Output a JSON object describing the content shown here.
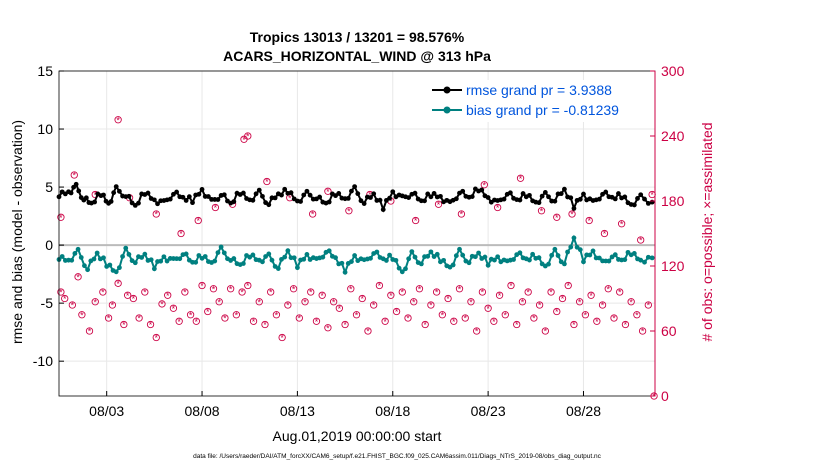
{
  "chart_data": {
    "type": "line",
    "title": "Tropics 13013 / 13201 = 98.576%",
    "subtitle": "ACARS_HORIZONTAL_WIND @ 313 hPa",
    "xlabel": "Aug.01,2019 00:00:00 start",
    "ylabel": "rmse and bias (model - observation)",
    "y2label": "# of obs: o=possible; ×=assimilated",
    "footnote": "data file: /Users/raeder/DAI/ATM_forcXX/CAM6_setup/f.e21.FHIST_BGC.f09_025.CAM6assim.011/Diags_NTrS_2019-08/obs_diag_output.nc",
    "xlim": [
      0.5,
      31.75
    ],
    "ylim": [
      -13,
      15
    ],
    "y2lim": [
      0,
      300
    ],
    "y2_offset_equivalent": 120,
    "yticks": [
      15,
      10,
      5,
      0,
      -5,
      -10
    ],
    "y2ticks": [
      300,
      240,
      180,
      120,
      60,
      0
    ],
    "xticks": [
      {
        "x": 3,
        "label": "08/03"
      },
      {
        "x": 8,
        "label": "08/08"
      },
      {
        "x": 13,
        "label": "08/13"
      },
      {
        "x": 18,
        "label": "08/18"
      },
      {
        "x": 23,
        "label": "08/23"
      },
      {
        "x": 28,
        "label": "08/28"
      }
    ],
    "legend_position": "top-right",
    "colors": {
      "rmse": "#000000",
      "bias": "#008080",
      "obs": "#cc0044",
      "legend_text": "#0055dd",
      "zero_line": "#bbbbbb",
      "grid": "#e8e8e8"
    },
    "series": [
      {
        "name": "rmse grand pr = 3.9388",
        "key": "rmse",
        "marker": "*",
        "anchors": [
          [
            0.5,
            4.4
          ],
          [
            1,
            4.6
          ],
          [
            1.4,
            5.0
          ],
          [
            1.8,
            4.0
          ],
          [
            2.2,
            3.5
          ],
          [
            2.7,
            4.5
          ],
          [
            3.1,
            3.6
          ],
          [
            3.5,
            4.8
          ],
          [
            4,
            4.3
          ],
          [
            4.5,
            3.3
          ],
          [
            5,
            4.6
          ],
          [
            5.5,
            3.9
          ],
          [
            6,
            3.6
          ],
          [
            6.5,
            4.5
          ],
          [
            7,
            4.0
          ],
          [
            7.5,
            3.9
          ],
          [
            8,
            4.8
          ],
          [
            8.5,
            3.7
          ],
          [
            9,
            4.4
          ],
          [
            9.5,
            3.5
          ],
          [
            10,
            4.6
          ],
          [
            10.5,
            3.9
          ],
          [
            11,
            4.5
          ],
          [
            11.5,
            3.6
          ],
          [
            12,
            4.3
          ],
          [
            12.5,
            4.7
          ],
          [
            13,
            3.8
          ],
          [
            13.5,
            4.4
          ],
          [
            14,
            4.1
          ],
          [
            14.5,
            3.5
          ],
          [
            15,
            4.5
          ],
          [
            15.5,
            4.0
          ],
          [
            16,
            4.8
          ],
          [
            16.5,
            3.7
          ],
          [
            17,
            4.3
          ],
          [
            17.5,
            3.3
          ],
          [
            18,
            4.6
          ],
          [
            18.5,
            4.0
          ],
          [
            19,
            4.5
          ],
          [
            19.5,
            3.7
          ],
          [
            20,
            4.4
          ],
          [
            20.5,
            4.2
          ],
          [
            21,
            3.5
          ],
          [
            21.5,
            4.6
          ],
          [
            22,
            4.0
          ],
          [
            22.5,
            4.9
          ],
          [
            23,
            4.1
          ],
          [
            23.5,
            3.6
          ],
          [
            24,
            4.5
          ],
          [
            24.5,
            3.8
          ],
          [
            25,
            4.4
          ],
          [
            25.5,
            3.7
          ],
          [
            26,
            4.3
          ],
          [
            26.5,
            3.9
          ],
          [
            27,
            4.7
          ],
          [
            27.5,
            3.4
          ],
          [
            28,
            4.4
          ],
          [
            28.5,
            3.6
          ],
          [
            29,
            4.5
          ],
          [
            29.5,
            4.0
          ],
          [
            30,
            4.3
          ],
          [
            30.5,
            3.5
          ],
          [
            31,
            4.1
          ],
          [
            31.6,
            3.7
          ]
        ]
      },
      {
        "name": "bias grand pr = -0.81239",
        "key": "bias",
        "marker": "o",
        "anchors": [
          [
            0.5,
            -1.0
          ],
          [
            1,
            -1.3
          ],
          [
            1.5,
            -0.6
          ],
          [
            2,
            -2.0
          ],
          [
            2.5,
            -0.8
          ],
          [
            3,
            -1.6
          ],
          [
            3.5,
            -2.3
          ],
          [
            4,
            -0.5
          ],
          [
            4.5,
            -1.4
          ],
          [
            5,
            -0.9
          ],
          [
            5.5,
            -1.8
          ],
          [
            6,
            -1.0
          ],
          [
            6.5,
            -1.4
          ],
          [
            7,
            -0.7
          ],
          [
            7.5,
            -1.6
          ],
          [
            8,
            -0.9
          ],
          [
            8.5,
            -1.5
          ],
          [
            9,
            -0.4
          ],
          [
            9.5,
            -1.2
          ],
          [
            10,
            -1.8
          ],
          [
            10.5,
            -0.8
          ],
          [
            11,
            -1.3
          ],
          [
            11.5,
            -1.0
          ],
          [
            12,
            -1.9
          ],
          [
            12.5,
            -0.6
          ],
          [
            13,
            -1.7
          ],
          [
            13.5,
            -0.8
          ],
          [
            14,
            -1.4
          ],
          [
            14.5,
            -0.5
          ],
          [
            15,
            -1.2
          ],
          [
            15.5,
            -2.1
          ],
          [
            16,
            -0.9
          ],
          [
            16.5,
            -1.5
          ],
          [
            17,
            -0.6
          ],
          [
            17.5,
            -1.3
          ],
          [
            18,
            -1.0
          ],
          [
            18.5,
            -2.3
          ],
          [
            19,
            -0.8
          ],
          [
            19.5,
            -1.5
          ],
          [
            20,
            -0.7
          ],
          [
            20.5,
            -1.2
          ],
          [
            21,
            -1.9
          ],
          [
            21.5,
            -0.6
          ],
          [
            22,
            -1.4
          ],
          [
            22.5,
            -0.8
          ],
          [
            23,
            -1.5
          ],
          [
            23.5,
            -1.0
          ],
          [
            24,
            -1.6
          ],
          [
            24.5,
            -0.7
          ],
          [
            25,
            -1.3
          ],
          [
            25.5,
            -0.9
          ],
          [
            26,
            -1.8
          ],
          [
            26.5,
            -0.6
          ],
          [
            27,
            -1.5
          ],
          [
            27.5,
            0.5
          ],
          [
            28,
            -1.2
          ],
          [
            28.5,
            -0.5
          ],
          [
            29,
            -1.6
          ],
          [
            29.5,
            -0.9
          ],
          [
            30,
            -1.4
          ],
          [
            30.5,
            -0.6
          ],
          [
            31,
            -1.3
          ],
          [
            31.6,
            -1.1
          ]
        ]
      }
    ],
    "obs_counts": [
      {
        "x": 0.6,
        "y2": 96
      },
      {
        "x": 0.8,
        "y2": 90
      },
      {
        "x": 1.2,
        "y2": 84
      },
      {
        "x": 1.5,
        "y2": 110
      },
      {
        "x": 1.7,
        "y2": 75
      },
      {
        "x": 2.1,
        "y2": 60
      },
      {
        "x": 2.4,
        "y2": 87
      },
      {
        "x": 2.8,
        "y2": 96
      },
      {
        "x": 3.1,
        "y2": 72
      },
      {
        "x": 3.3,
        "y2": 84
      },
      {
        "x": 3.6,
        "y2": 104
      },
      {
        "x": 3.9,
        "y2": 66
      },
      {
        "x": 4.1,
        "y2": 93
      },
      {
        "x": 4.4,
        "y2": 90
      },
      {
        "x": 4.7,
        "y2": 72
      },
      {
        "x": 5.0,
        "y2": 96
      },
      {
        "x": 5.3,
        "y2": 66
      },
      {
        "x": 5.6,
        "y2": 54
      },
      {
        "x": 5.9,
        "y2": 85
      },
      {
        "x": 6.2,
        "y2": 93
      },
      {
        "x": 6.5,
        "y2": 81
      },
      {
        "x": 6.8,
        "y2": 69
      },
      {
        "x": 7.1,
        "y2": 96
      },
      {
        "x": 7.4,
        "y2": 75
      },
      {
        "x": 7.7,
        "y2": 69
      },
      {
        "x": 8.0,
        "y2": 102
      },
      {
        "x": 8.3,
        "y2": 78
      },
      {
        "x": 8.6,
        "y2": 99
      },
      {
        "x": 8.9,
        "y2": 87
      },
      {
        "x": 9.2,
        "y2": 72
      },
      {
        "x": 9.5,
        "y2": 99
      },
      {
        "x": 9.8,
        "y2": 75
      },
      {
        "x": 10.1,
        "y2": 96
      },
      {
        "x": 10.4,
        "y2": 102
      },
      {
        "x": 10.7,
        "y2": 69
      },
      {
        "x": 11.0,
        "y2": 87
      },
      {
        "x": 11.3,
        "y2": 66
      },
      {
        "x": 11.6,
        "y2": 96
      },
      {
        "x": 11.9,
        "y2": 75
      },
      {
        "x": 12.2,
        "y2": 54
      },
      {
        "x": 12.5,
        "y2": 84
      },
      {
        "x": 12.8,
        "y2": 99
      },
      {
        "x": 13.1,
        "y2": 72
      },
      {
        "x": 13.4,
        "y2": 87
      },
      {
        "x": 13.7,
        "y2": 96
      },
      {
        "x": 14.0,
        "y2": 69
      },
      {
        "x": 14.3,
        "y2": 93
      },
      {
        "x": 14.6,
        "y2": 63
      },
      {
        "x": 14.9,
        "y2": 87
      },
      {
        "x": 15.2,
        "y2": 81
      },
      {
        "x": 15.5,
        "y2": 66
      },
      {
        "x": 15.8,
        "y2": 99
      },
      {
        "x": 16.1,
        "y2": 75
      },
      {
        "x": 16.4,
        "y2": 90
      },
      {
        "x": 16.7,
        "y2": 60
      },
      {
        "x": 17.0,
        "y2": 84
      },
      {
        "x": 17.3,
        "y2": 102
      },
      {
        "x": 17.6,
        "y2": 69
      },
      {
        "x": 17.9,
        "y2": 93
      },
      {
        "x": 18.2,
        "y2": 78
      },
      {
        "x": 18.5,
        "y2": 96
      },
      {
        "x": 18.8,
        "y2": 72
      },
      {
        "x": 19.1,
        "y2": 87
      },
      {
        "x": 19.4,
        "y2": 99
      },
      {
        "x": 19.7,
        "y2": 66
      },
      {
        "x": 20.0,
        "y2": 84
      },
      {
        "x": 20.3,
        "y2": 96
      },
      {
        "x": 20.6,
        "y2": 75
      },
      {
        "x": 20.9,
        "y2": 90
      },
      {
        "x": 21.2,
        "y2": 69
      },
      {
        "x": 21.5,
        "y2": 99
      },
      {
        "x": 21.8,
        "y2": 72
      },
      {
        "x": 22.1,
        "y2": 87
      },
      {
        "x": 22.4,
        "y2": 60
      },
      {
        "x": 22.7,
        "y2": 96
      },
      {
        "x": 23.0,
        "y2": 81
      },
      {
        "x": 23.3,
        "y2": 69
      },
      {
        "x": 23.6,
        "y2": 93
      },
      {
        "x": 23.9,
        "y2": 75
      },
      {
        "x": 24.2,
        "y2": 102
      },
      {
        "x": 24.5,
        "y2": 66
      },
      {
        "x": 24.8,
        "y2": 87
      },
      {
        "x": 25.1,
        "y2": 96
      },
      {
        "x": 25.4,
        "y2": 72
      },
      {
        "x": 25.7,
        "y2": 84
      },
      {
        "x": 26.0,
        "y2": 60
      },
      {
        "x": 26.3,
        "y2": 96
      },
      {
        "x": 26.6,
        "y2": 78
      },
      {
        "x": 26.9,
        "y2": 90
      },
      {
        "x": 27.2,
        "y2": 102
      },
      {
        "x": 27.5,
        "y2": 66
      },
      {
        "x": 27.8,
        "y2": 87
      },
      {
        "x": 28.1,
        "y2": 75
      },
      {
        "x": 28.4,
        "y2": 93
      },
      {
        "x": 28.7,
        "y2": 69
      },
      {
        "x": 29.0,
        "y2": 84
      },
      {
        "x": 29.3,
        "y2": 99
      },
      {
        "x": 29.6,
        "y2": 72
      },
      {
        "x": 29.9,
        "y2": 96
      },
      {
        "x": 30.2,
        "y2": 66
      },
      {
        "x": 30.5,
        "y2": 87
      },
      {
        "x": 30.8,
        "y2": 75
      },
      {
        "x": 31.1,
        "y2": 60
      },
      {
        "x": 31.4,
        "y2": 84
      },
      {
        "x": 31.7,
        "y2": 0
      },
      {
        "x": 0.6,
        "y2": 165
      },
      {
        "x": 1.3,
        "y2": 204
      },
      {
        "x": 2.4,
        "y2": 186
      },
      {
        "x": 3.6,
        "y2": 255
      },
      {
        "x": 4.2,
        "y2": 183
      },
      {
        "x": 5.6,
        "y2": 168
      },
      {
        "x": 6.9,
        "y2": 150
      },
      {
        "x": 7.8,
        "y2": 162
      },
      {
        "x": 8.7,
        "y2": 174
      },
      {
        "x": 9.6,
        "y2": 177
      },
      {
        "x": 10.2,
        "y2": 237
      },
      {
        "x": 10.4,
        "y2": 240
      },
      {
        "x": 11.4,
        "y2": 198
      },
      {
        "x": 12.6,
        "y2": 183
      },
      {
        "x": 13.8,
        "y2": 168
      },
      {
        "x": 14.6,
        "y2": 189
      },
      {
        "x": 15.7,
        "y2": 171
      },
      {
        "x": 16.8,
        "y2": 186
      },
      {
        "x": 17.9,
        "y2": 180
      },
      {
        "x": 19.2,
        "y2": 162
      },
      {
        "x": 20.4,
        "y2": 177
      },
      {
        "x": 21.6,
        "y2": 168
      },
      {
        "x": 22.8,
        "y2": 195
      },
      {
        "x": 23.5,
        "y2": 174
      },
      {
        "x": 24.7,
        "y2": 201
      },
      {
        "x": 25.8,
        "y2": 171
      },
      {
        "x": 26.6,
        "y2": 165
      },
      {
        "x": 27.4,
        "y2": 168
      },
      {
        "x": 28.3,
        "y2": 162
      },
      {
        "x": 29.1,
        "y2": 150
      },
      {
        "x": 30.0,
        "y2": 159
      },
      {
        "x": 31.0,
        "y2": 144
      },
      {
        "x": 31.6,
        "y2": 186
      }
    ]
  }
}
